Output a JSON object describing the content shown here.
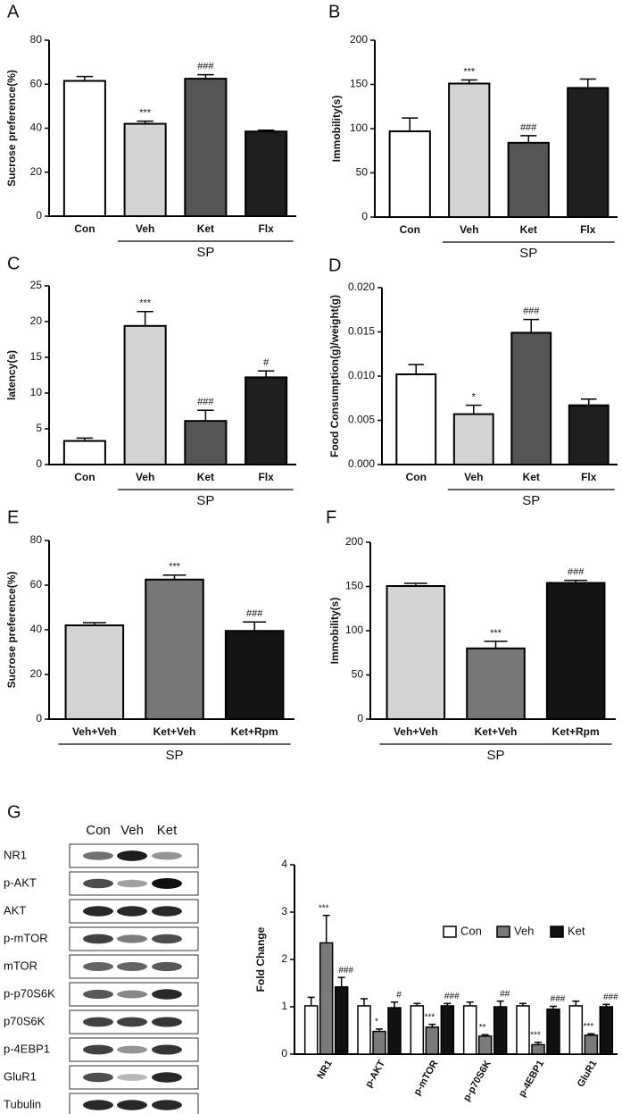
{
  "chart_data": [
    {
      "type": "bar",
      "panel": "A",
      "ylabel": "Sucrose  preference(%)",
      "categories": [
        "Con",
        "Veh",
        "Ket",
        "Flx"
      ],
      "values": [
        61.5,
        42,
        62.5,
        38.5
      ],
      "errors": [
        2,
        1.2,
        1.8,
        0.6
      ],
      "annotations": [
        null,
        "***",
        "###",
        null
      ],
      "colors": [
        "#ffffff",
        "#d4d4d4",
        "#555555",
        "#1e1e1e"
      ],
      "group": {
        "label": "SP",
        "members": [
          "Veh",
          "Ket",
          "Flx"
        ]
      },
      "ylim": [
        0,
        80
      ],
      "yticks": [
        0,
        20,
        40,
        60,
        80
      ]
    },
    {
      "type": "bar",
      "panel": "B",
      "ylabel": "Immobility(s)",
      "categories": [
        "Con",
        "Veh",
        "Ket",
        "Flx"
      ],
      "values": [
        97,
        151,
        84,
        146
      ],
      "errors": [
        15,
        4,
        8,
        10
      ],
      "annotations": [
        null,
        "***",
        "###",
        null
      ],
      "colors": [
        "#ffffff",
        "#d4d4d4",
        "#555555",
        "#1e1e1e"
      ],
      "group": {
        "label": "SP",
        "members": [
          "Veh",
          "Ket",
          "Flx"
        ]
      },
      "ylim": [
        0,
        200
      ],
      "yticks": [
        0,
        50,
        100,
        150,
        200
      ]
    },
    {
      "type": "bar",
      "panel": "C",
      "ylabel": "latency(s)",
      "categories": [
        "Con",
        "Veh",
        "Ket",
        "Flx"
      ],
      "values": [
        3.3,
        19.4,
        6.1,
        12.2
      ],
      "errors": [
        0.4,
        2,
        1.5,
        0.9
      ],
      "annotations": [
        null,
        "***",
        "###",
        "#"
      ],
      "colors": [
        "#ffffff",
        "#d4d4d4",
        "#555555",
        "#1e1e1e"
      ],
      "group": {
        "label": "SP",
        "members": [
          "Veh",
          "Ket",
          "Flx"
        ]
      },
      "ylim": [
        0,
        25
      ],
      "yticks": [
        0,
        5,
        10,
        15,
        20,
        25
      ]
    },
    {
      "type": "bar",
      "panel": "D",
      "ylabel": "Food Consumption(g)/weight(g)",
      "categories": [
        "Con",
        "Veh",
        "Ket",
        "Flx"
      ],
      "values": [
        0.0102,
        0.0057,
        0.0149,
        0.0067
      ],
      "errors": [
        0.0011,
        0.001,
        0.0015,
        0.0007
      ],
      "annotations": [
        null,
        "*",
        "###",
        null
      ],
      "colors": [
        "#ffffff",
        "#d4d4d4",
        "#555555",
        "#1e1e1e"
      ],
      "group": {
        "label": "SP",
        "members": [
          "Veh",
          "Ket",
          "Flx"
        ]
      },
      "ylim": [
        0,
        0.02
      ],
      "yticks": [
        {
          "value": 0,
          "label": "0.000"
        },
        {
          "value": 0.005,
          "label": "0.005"
        },
        {
          "value": 0.01,
          "label": "0.010"
        },
        {
          "value": 0.015,
          "label": "0.015"
        },
        {
          "value": 0.02,
          "label": "0.020"
        }
      ]
    },
    {
      "type": "bar",
      "panel": "E",
      "ylabel": "Sucrose  preference(%)",
      "categories": [
        "Veh+Veh",
        "Ket+Veh",
        "Ket+Rpm"
      ],
      "values": [
        42,
        62.5,
        39.5
      ],
      "errors": [
        1.2,
        2,
        4
      ],
      "annotations": [
        null,
        "***",
        "###"
      ],
      "colors": [
        "#d4d4d4",
        "#777777",
        "#151515"
      ],
      "group": {
        "label": "SP",
        "members": [
          "Veh+Veh",
          "Ket+Veh",
          "Ket+Rpm"
        ]
      },
      "ylim": [
        0,
        80
      ],
      "yticks": [
        0,
        20,
        40,
        60,
        80
      ]
    },
    {
      "type": "bar",
      "panel": "F",
      "ylabel": "Immobility(s)",
      "categories": [
        "Veh+Veh",
        "Ket+Veh",
        "Ket+Rpm"
      ],
      "values": [
        150.5,
        80,
        154
      ],
      "errors": [
        3,
        8,
        3
      ],
      "annotations": [
        null,
        "***",
        "###"
      ],
      "colors": [
        "#d4d4d4",
        "#777777",
        "#151515"
      ],
      "group": {
        "label": "SP",
        "members": [
          "Veh+Veh",
          "Ket+Veh",
          "Ket+Rpm"
        ]
      },
      "ylim": [
        0,
        200
      ],
      "yticks": [
        0,
        50,
        100,
        150,
        200
      ]
    },
    {
      "type": "grouped_bar",
      "ylabel": "Fold Change",
      "categories": [
        "NR1",
        "p-AKT",
        "p-mTOR",
        "p-p70S6K",
        "p-4EBP1",
        "GluR1"
      ],
      "series": [
        {
          "name": "Con",
          "color": "#ffffff",
          "values": [
            1.02,
            1.02,
            1.02,
            1.02,
            1.02,
            1.02
          ],
          "errors": [
            0.18,
            0.15,
            0.05,
            0.08,
            0.05,
            0.1
          ],
          "annotations": [
            null,
            null,
            null,
            null,
            null,
            null
          ]
        },
        {
          "name": "Veh",
          "color": "#7a7a7a",
          "values": [
            2.35,
            0.48,
            0.57,
            0.38,
            0.2,
            0.4
          ],
          "errors": [
            0.58,
            0.05,
            0.06,
            0.03,
            0.05,
            0.03
          ],
          "annotations": [
            "***",
            "*",
            "***",
            "**",
            "***",
            "***"
          ]
        },
        {
          "name": "Ket",
          "color": "#111111",
          "values": [
            1.42,
            0.98,
            1.02,
            1.0,
            0.95,
            1.0
          ],
          "errors": [
            0.2,
            0.12,
            0.05,
            0.12,
            0.06,
            0.05
          ],
          "annotations": [
            "###",
            "#",
            "###",
            "##",
            "###",
            "###"
          ]
        }
      ],
      "ylim": [
        0,
        4
      ],
      "yticks": [
        0,
        1,
        2,
        3,
        4
      ],
      "legend": "top-right"
    }
  ],
  "blot": {
    "panel": "G",
    "lanes": [
      "Con",
      "Veh",
      "Ket"
    ],
    "rows": [
      "NR1",
      "p-AKT",
      "AKT",
      "p-mTOR",
      "mTOR",
      "p-p70S6K",
      "p70S6K",
      "p-4EBP1",
      "GluR1",
      "Tubulin"
    ]
  }
}
